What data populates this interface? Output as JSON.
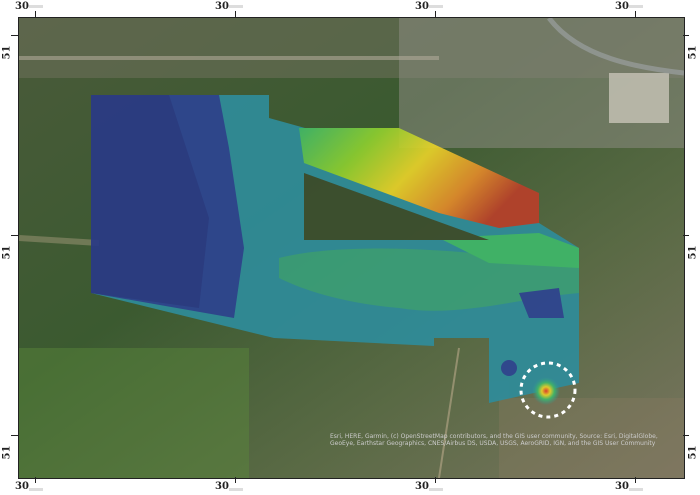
{
  "map": {
    "graticule": {
      "top_labels": [
        "30",
        "30",
        "30",
        "30"
      ],
      "bottom_labels": [
        "30",
        "30",
        "30",
        "30"
      ],
      "left_labels": [
        "51",
        "51",
        "51"
      ],
      "right_labels": [
        "51",
        "51",
        "51"
      ]
    },
    "basemap": "satellite-imagery",
    "overlay": {
      "type": "heatmap-raster",
      "color_ramp": [
        "#2e3f8f",
        "#2d6fa0",
        "#2f9a98",
        "#3fb86a",
        "#8fcf2f",
        "#e8d22a",
        "#e08a2a",
        "#b8402a"
      ]
    },
    "highlight_marker": {
      "shape": "dashed-circle",
      "color": "#ffffff"
    },
    "attribution": "Esri, HERE, Garmin, (c) OpenStreetMap contributors, and the GIS user community, Source: Esri, DigitalGlobe, GeoEye, Earthstar Geographics, CNES/Airbus DS, USDA, USGS, AeroGRID, IGN, and the GIS User Community"
  }
}
